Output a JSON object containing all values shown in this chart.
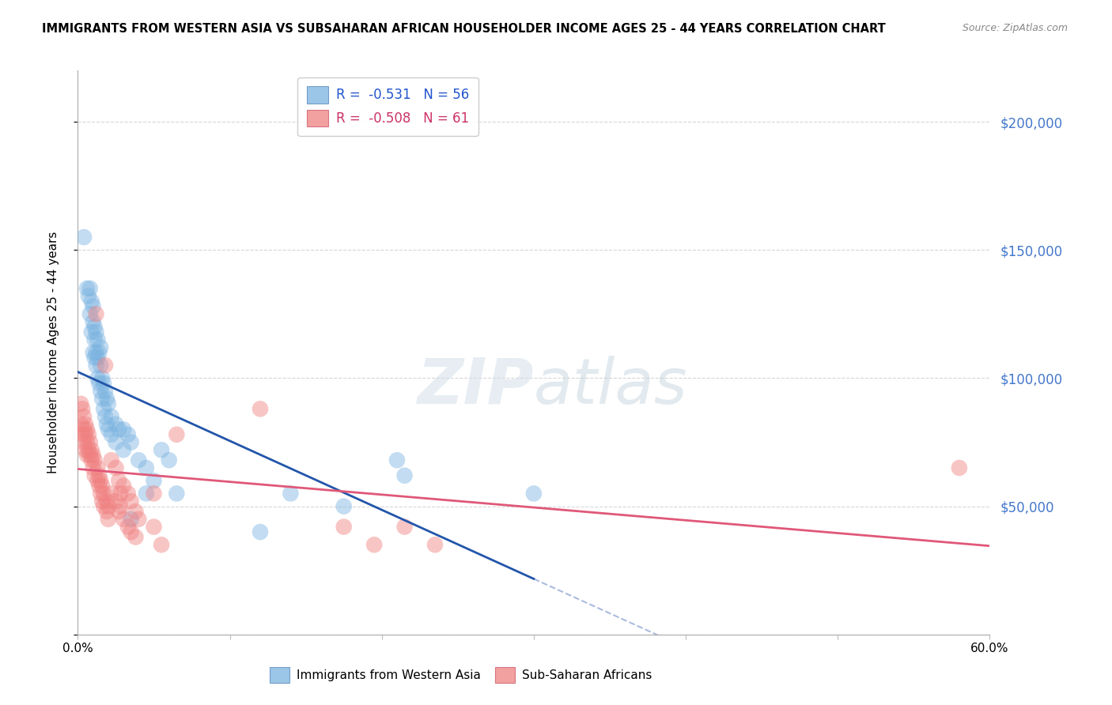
{
  "title": "IMMIGRANTS FROM WESTERN ASIA VS SUBSAHARAN AFRICAN HOUSEHOLDER INCOME AGES 25 - 44 YEARS CORRELATION CHART",
  "source": "Source: ZipAtlas.com",
  "ylabel": "Householder Income Ages 25 - 44 years",
  "xlim": [
    0.0,
    0.6
  ],
  "ylim": [
    0,
    220000
  ],
  "yticks": [
    0,
    50000,
    100000,
    150000,
    200000
  ],
  "ytick_labels": [
    "",
    "$50,000",
    "$100,000",
    "$150,000",
    "$200,000"
  ],
  "xtick_positions": [
    0.0,
    0.1,
    0.2,
    0.3,
    0.4,
    0.5,
    0.6
  ],
  "xtick_labels": [
    "0.0%",
    "",
    "",
    "",
    "",
    "",
    "60.0%"
  ],
  "western_asia_color": "#7ab3e0",
  "subsaharan_color": "#f08080",
  "trend_line_blue_color": "#2255aa",
  "trend_line_pink_color": "#e05878",
  "trend_line_dashed_color": "#aabbdd",
  "background_color": "#ffffff",
  "grid_color": "#cccccc",
  "right_axis_color": "#4477cc",
  "western_asia_data": [
    [
      0.004,
      155000
    ],
    [
      0.006,
      135000
    ],
    [
      0.007,
      132000
    ],
    [
      0.008,
      125000
    ],
    [
      0.008,
      135000
    ],
    [
      0.009,
      118000
    ],
    [
      0.009,
      130000
    ],
    [
      0.01,
      110000
    ],
    [
      0.01,
      122000
    ],
    [
      0.01,
      128000
    ],
    [
      0.011,
      108000
    ],
    [
      0.011,
      115000
    ],
    [
      0.011,
      120000
    ],
    [
      0.012,
      105000
    ],
    [
      0.012,
      110000
    ],
    [
      0.012,
      118000
    ],
    [
      0.013,
      100000
    ],
    [
      0.013,
      108000
    ],
    [
      0.013,
      115000
    ],
    [
      0.014,
      98000
    ],
    [
      0.014,
      110000
    ],
    [
      0.015,
      95000
    ],
    [
      0.015,
      105000
    ],
    [
      0.015,
      112000
    ],
    [
      0.016,
      92000
    ],
    [
      0.016,
      100000
    ],
    [
      0.017,
      88000
    ],
    [
      0.017,
      98000
    ],
    [
      0.018,
      85000
    ],
    [
      0.018,
      95000
    ],
    [
      0.019,
      82000
    ],
    [
      0.019,
      92000
    ],
    [
      0.02,
      80000
    ],
    [
      0.02,
      90000
    ],
    [
      0.022,
      85000
    ],
    [
      0.022,
      78000
    ],
    [
      0.025,
      82000
    ],
    [
      0.025,
      75000
    ],
    [
      0.027,
      80000
    ],
    [
      0.03,
      72000
    ],
    [
      0.03,
      80000
    ],
    [
      0.033,
      78000
    ],
    [
      0.035,
      75000
    ],
    [
      0.035,
      45000
    ],
    [
      0.04,
      68000
    ],
    [
      0.045,
      65000
    ],
    [
      0.045,
      55000
    ],
    [
      0.05,
      60000
    ],
    [
      0.055,
      72000
    ],
    [
      0.06,
      68000
    ],
    [
      0.065,
      55000
    ],
    [
      0.12,
      40000
    ],
    [
      0.14,
      55000
    ],
    [
      0.175,
      50000
    ],
    [
      0.21,
      68000
    ],
    [
      0.215,
      62000
    ],
    [
      0.3,
      55000
    ]
  ],
  "subsaharan_data": [
    [
      0.002,
      90000
    ],
    [
      0.002,
      82000
    ],
    [
      0.003,
      88000
    ],
    [
      0.003,
      78000
    ],
    [
      0.004,
      85000
    ],
    [
      0.004,
      80000
    ],
    [
      0.004,
      75000
    ],
    [
      0.005,
      82000
    ],
    [
      0.005,
      78000
    ],
    [
      0.005,
      72000
    ],
    [
      0.006,
      80000
    ],
    [
      0.006,
      75000
    ],
    [
      0.006,
      70000
    ],
    [
      0.007,
      78000
    ],
    [
      0.007,
      72000
    ],
    [
      0.008,
      75000
    ],
    [
      0.008,
      70000
    ],
    [
      0.009,
      72000
    ],
    [
      0.009,
      68000
    ],
    [
      0.01,
      70000
    ],
    [
      0.01,
      65000
    ],
    [
      0.011,
      68000
    ],
    [
      0.011,
      62000
    ],
    [
      0.012,
      125000
    ],
    [
      0.013,
      65000
    ],
    [
      0.013,
      60000
    ],
    [
      0.014,
      62000
    ],
    [
      0.014,
      58000
    ],
    [
      0.015,
      60000
    ],
    [
      0.015,
      55000
    ],
    [
      0.016,
      58000
    ],
    [
      0.016,
      52000
    ],
    [
      0.017,
      55000
    ],
    [
      0.017,
      50000
    ],
    [
      0.018,
      105000
    ],
    [
      0.019,
      52000
    ],
    [
      0.019,
      48000
    ],
    [
      0.02,
      50000
    ],
    [
      0.02,
      45000
    ],
    [
      0.022,
      68000
    ],
    [
      0.022,
      55000
    ],
    [
      0.025,
      65000
    ],
    [
      0.025,
      52000
    ],
    [
      0.027,
      60000
    ],
    [
      0.027,
      48000
    ],
    [
      0.028,
      55000
    ],
    [
      0.028,
      50000
    ],
    [
      0.03,
      58000
    ],
    [
      0.03,
      45000
    ],
    [
      0.033,
      55000
    ],
    [
      0.033,
      42000
    ],
    [
      0.035,
      52000
    ],
    [
      0.035,
      40000
    ],
    [
      0.038,
      48000
    ],
    [
      0.038,
      38000
    ],
    [
      0.04,
      45000
    ],
    [
      0.05,
      55000
    ],
    [
      0.05,
      42000
    ],
    [
      0.055,
      35000
    ],
    [
      0.065,
      78000
    ],
    [
      0.12,
      88000
    ],
    [
      0.175,
      42000
    ],
    [
      0.195,
      35000
    ],
    [
      0.215,
      42000
    ],
    [
      0.235,
      35000
    ],
    [
      0.58,
      65000
    ]
  ]
}
